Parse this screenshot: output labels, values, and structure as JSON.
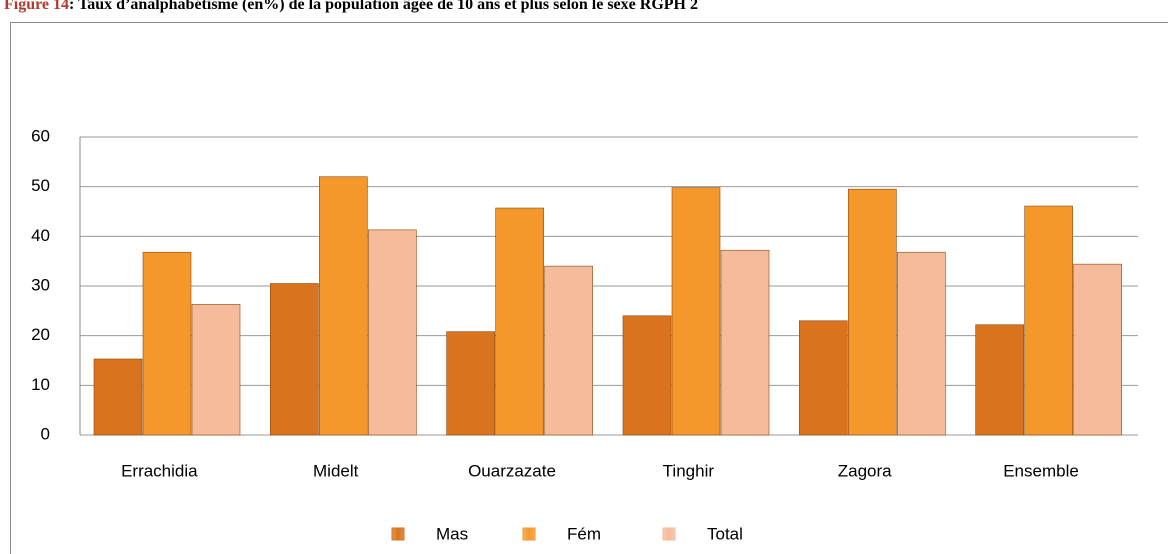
{
  "chart_data": {
    "type": "bar",
    "figure_label": "Figure 14",
    "title": ": Taux d’analphabétisme (en%) de la population âgée de 10 ans et plus selon le sexe RGPH 2",
    "categories": [
      "Errachidia",
      "Midelt",
      "Ouarzazate",
      "Tinghir",
      "Zagora",
      "Ensemble"
    ],
    "series": [
      {
        "name": "Mas",
        "color": "#d9731d",
        "values": [
          15.3,
          30.5,
          20.8,
          24,
          23,
          22.2
        ]
      },
      {
        "name": "Fém",
        "color": "#f5982c",
        "values": [
          36.8,
          52,
          45.7,
          49.8,
          49.5,
          46.1
        ]
      },
      {
        "name": "Total",
        "color": "#f4bc9a",
        "values": [
          26.3,
          41.3,
          34,
          37.2,
          36.8,
          34.4
        ]
      }
    ],
    "ylim": [
      0,
      60
    ],
    "yticks": [
      0,
      10,
      20,
      30,
      40,
      50,
      60
    ],
    "grid": true,
    "legend": "bottom"
  }
}
